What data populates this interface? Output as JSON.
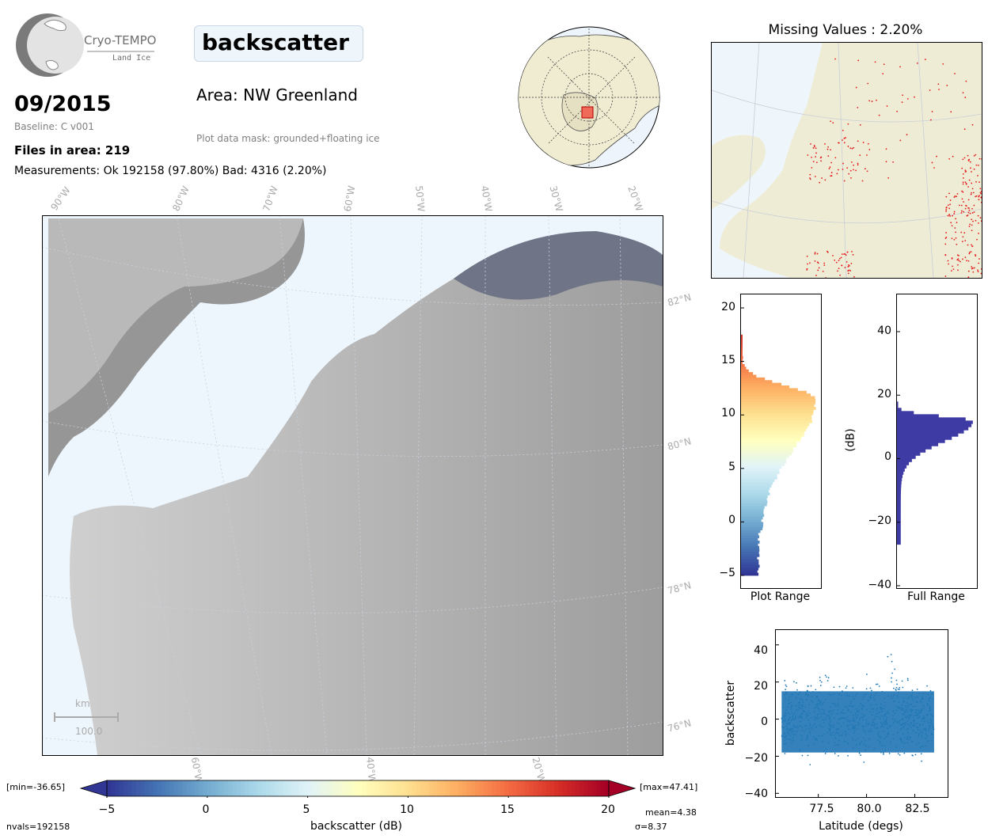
{
  "logo": {
    "name": "Cryo-TEMPO",
    "subtitle": "Land Ice"
  },
  "parameter": "backscatter",
  "date": "09/2015",
  "baseline": "Baseline: C v001",
  "area": "Area: NW Greenland",
  "files": "Files in area: 219",
  "measurements": "Measurements: Ok 192158 (97.80%) Bad: 4316 (2.20%)",
  "mask": "Plot data mask: grounded+floating ice",
  "map": {
    "lon_labels_top": [
      "90°W",
      "80°W",
      "70°W",
      "60°W",
      "50°W",
      "40°W",
      "30°W",
      "20°W"
    ],
    "lat_labels_right": [
      "82°N",
      "80°N",
      "78°N",
      "76°N"
    ],
    "lon_labels_bottom": [
      "60°W",
      "40°W",
      "20°W"
    ],
    "scale_unit": "km",
    "scale_value": "100.0"
  },
  "missing": {
    "title": "Missing Values : 2.20%"
  },
  "plot_range": {
    "label": "Plot Range",
    "ticks": [
      "20",
      "15",
      "10",
      "5",
      "0",
      "−5"
    ]
  },
  "full_range": {
    "label": "Full Range",
    "ylabel": "(dB)",
    "ticks": [
      "40",
      "20",
      "0",
      "−20",
      "−40"
    ]
  },
  "scatter": {
    "ylabel": "backscatter",
    "xlabel": "Latitude (degs)",
    "yticks": [
      "40",
      "20",
      "0",
      "−20",
      "−40"
    ],
    "xticks": [
      "77.5",
      "80.0",
      "82.5"
    ]
  },
  "colorbar": {
    "label": "backscatter (dB)",
    "ticks": [
      "−5",
      "0",
      "5",
      "10",
      "15",
      "20"
    ],
    "min_label": "[min=-36.65]",
    "max_label": "[max=47.41]",
    "colors": [
      "#313695",
      "#4575b4",
      "#74add1",
      "#abd9e9",
      "#e0f3f8",
      "#ffffbf",
      "#fee090",
      "#fdae61",
      "#f46d43",
      "#d73027",
      "#a50026"
    ]
  },
  "stats": {
    "nvals": "nvals=192158",
    "mean": "mean=4.38",
    "sigma": "σ=8.37"
  }
}
